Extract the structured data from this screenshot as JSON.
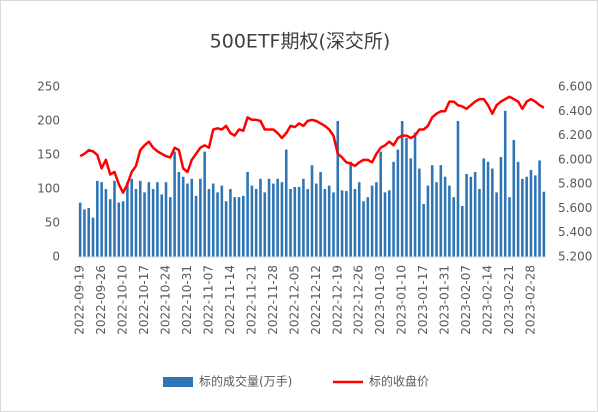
{
  "chart_data": {
    "type": "bar",
    "title": "500ETF期权(深交所)",
    "categories": [
      "2022-09-19",
      null,
      null,
      null,
      null,
      "2022-09-26",
      null,
      null,
      null,
      null,
      "2022-10-10",
      null,
      null,
      null,
      null,
      "2022-10-17",
      null,
      null,
      null,
      null,
      "2022-10-24",
      null,
      null,
      null,
      null,
      "2022-10-31",
      null,
      null,
      null,
      null,
      "2022-11-07",
      null,
      null,
      null,
      null,
      "2022-11-14",
      null,
      null,
      null,
      null,
      "2022-11-21",
      null,
      null,
      null,
      null,
      "2022-11-28",
      null,
      null,
      null,
      null,
      "2022-12-05",
      null,
      null,
      null,
      null,
      "2022-12-12",
      null,
      null,
      null,
      null,
      "2022-12-19",
      null,
      null,
      null,
      null,
      "2022-12-26",
      null,
      null,
      null,
      null,
      "2023-01-03",
      null,
      null,
      null,
      null,
      "2023-01-10",
      null,
      null,
      null,
      null,
      "2023-01-17",
      null,
      null,
      null,
      null,
      "2023-01-31",
      null,
      null,
      null,
      null,
      "2023-02-07",
      null,
      null,
      null,
      null,
      "2023-02-14",
      null,
      null,
      null,
      null,
      "2023-02-21",
      null,
      null,
      null,
      null,
      "2023-02-28",
      null,
      null,
      null
    ],
    "series": [
      {
        "name": "标的成交量(万手)",
        "type": "bar",
        "color": "#2e75b6",
        "values": [
          80,
          70,
          72,
          58,
          112,
          110,
          100,
          85,
          112,
          80,
          82,
          110,
          115,
          100,
          112,
          95,
          110,
          100,
          110,
          92,
          110,
          88,
          155,
          125,
          118,
          108,
          115,
          90,
          115,
          155,
          100,
          108,
          95,
          105,
          82,
          100,
          88,
          88,
          90,
          125,
          105,
          100,
          115,
          95,
          115,
          108,
          115,
          110,
          158,
          100,
          103,
          103,
          115,
          100,
          135,
          108,
          125,
          100,
          105,
          95,
          200,
          98,
          97,
          140,
          100,
          110,
          82,
          88,
          105,
          110,
          155,
          95,
          98,
          140,
          158,
          200,
          175,
          145,
          183,
          130,
          78,
          105,
          135,
          110,
          135,
          118,
          105,
          88,
          200,
          75,
          122,
          118,
          125,
          100,
          145,
          140,
          130,
          95,
          147,
          215,
          88,
          172,
          140,
          115,
          118,
          128,
          120,
          142,
          96
        ]
      },
      {
        "name": "标的收盘价",
        "type": "line",
        "axis": "y2",
        "color": "#ff0000",
        "values": [
          6.03,
          6.05,
          6.08,
          6.07,
          6.04,
          5.93,
          6.0,
          5.88,
          5.9,
          5.8,
          5.73,
          5.8,
          5.9,
          5.95,
          6.08,
          6.12,
          6.15,
          6.1,
          6.07,
          6.05,
          6.03,
          6.02,
          6.1,
          6.08,
          5.93,
          5.9,
          6.0,
          6.05,
          6.1,
          6.12,
          6.1,
          6.25,
          6.26,
          6.25,
          6.28,
          6.22,
          6.2,
          6.25,
          6.24,
          6.35,
          6.33,
          6.33,
          6.32,
          6.25,
          6.25,
          6.25,
          6.22,
          6.18,
          6.22,
          6.28,
          6.27,
          6.3,
          6.28,
          6.32,
          6.33,
          6.32,
          6.3,
          6.28,
          6.25,
          6.2,
          6.05,
          6.02,
          5.98,
          5.97,
          5.95,
          5.98,
          6.0,
          6.0,
          5.98,
          6.05,
          6.1,
          6.12,
          6.15,
          6.12,
          6.18,
          6.2,
          6.2,
          6.18,
          6.2,
          6.25,
          6.25,
          6.28,
          6.35,
          6.38,
          6.4,
          6.4,
          6.48,
          6.48,
          6.45,
          6.44,
          6.42,
          6.45,
          6.48,
          6.5,
          6.5,
          6.45,
          6.38,
          6.45,
          6.48,
          6.5,
          6.52,
          6.5,
          6.48,
          6.42,
          6.48,
          6.5,
          6.48,
          6.45,
          6.43
        ]
      }
    ],
    "ylim": [
      0,
      250
    ],
    "yticks": [
      0,
      50,
      100,
      150,
      200,
      250
    ],
    "y2lim": [
      5.2,
      6.6
    ],
    "y2ticks": [
      {
        "value": 5.2,
        "label": "5.200"
      },
      {
        "value": 5.4,
        "label": "5.400"
      },
      {
        "value": 5.6,
        "label": "5.600"
      },
      {
        "value": 5.8,
        "label": "5.800"
      },
      {
        "value": 6.0,
        "label": "6.000"
      },
      {
        "value": 6.2,
        "label": "6.200"
      },
      {
        "value": 6.4,
        "label": "6.400"
      },
      {
        "value": 6.6,
        "label": "6.600"
      }
    ],
    "grid": false,
    "legend": "bottom"
  }
}
